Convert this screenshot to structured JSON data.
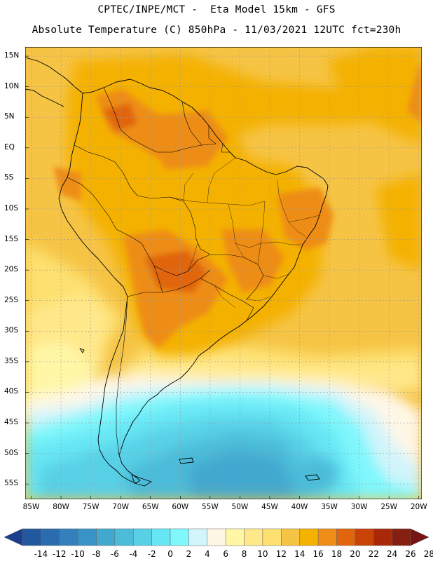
{
  "header": {
    "line1": "CPTEC/INPE/MCT -  Eta Model 15km - GFS",
    "line2": "Absolute Temperature (C) 850hPa - 11/03/2021 12UTC fct=230h"
  },
  "map": {
    "lat_labels": [
      "15N",
      "10N",
      "5N",
      "EQ",
      "5S",
      "10S",
      "15S",
      "20S",
      "25S",
      "30S",
      "35S",
      "40S",
      "45S",
      "50S",
      "55S"
    ],
    "lon_labels": [
      "85W",
      "80W",
      "75W",
      "70W",
      "65W",
      "60W",
      "55W",
      "50W",
      "45W",
      "40W",
      "35W",
      "30W",
      "25W",
      "20W"
    ],
    "lat_range": [
      -57.5,
      16.5
    ],
    "lon_range": [
      -86,
      -19.5
    ],
    "gridlines": "dashed"
  },
  "legend": {
    "values": [
      "-14",
      "-12",
      "-10",
      "-8",
      "-6",
      "-4",
      "-2",
      "0",
      "2",
      "4",
      "6",
      "8",
      "10",
      "12",
      "14",
      "16",
      "18",
      "20",
      "22",
      "24",
      "26",
      "28"
    ],
    "colors": [
      "#1b3f8e",
      "#2258a0",
      "#2b6cae",
      "#3380bd",
      "#3993c6",
      "#42a8cf",
      "#4cbcd9",
      "#58d0e6",
      "#66e6f4",
      "#7ff7fc",
      "#d2f4fb",
      "#fff7e6",
      "#fff7a6",
      "#ffe88a",
      "#fde070",
      "#f6c445",
      "#f4b100",
      "#ee8d18",
      "#e0650c",
      "#c94208",
      "#a82808",
      "#871e12",
      "#741414"
    ]
  }
}
